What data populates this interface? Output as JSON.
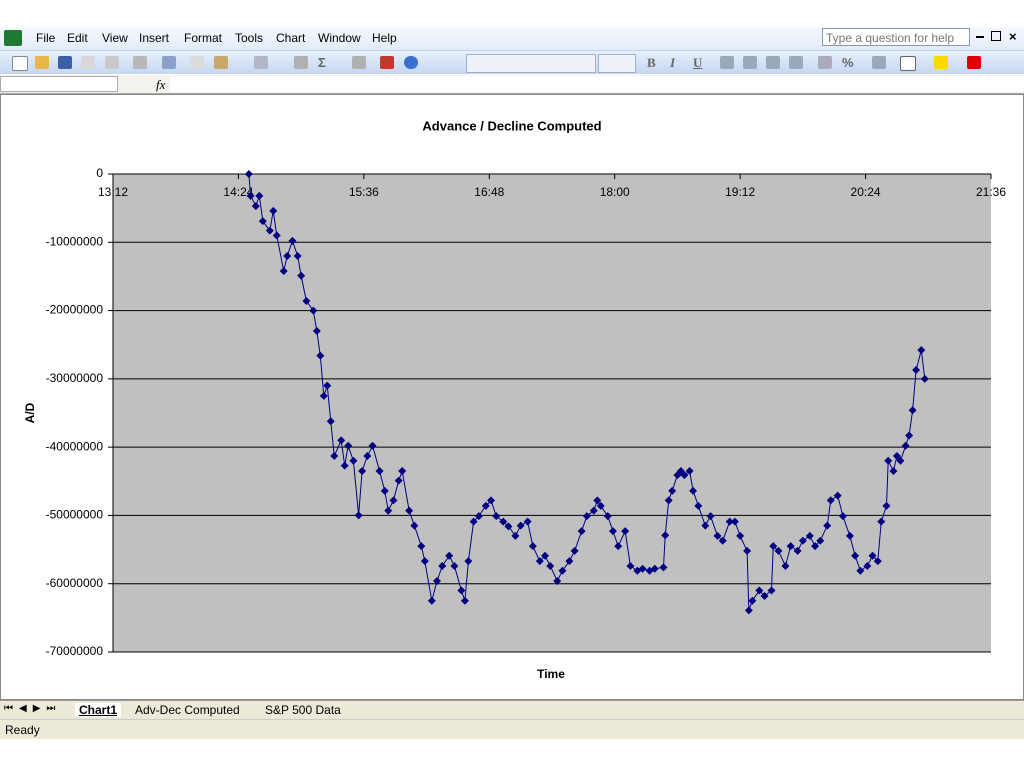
{
  "menu": [
    "File",
    "Edit",
    "View",
    "Insert",
    "Format",
    "Tools",
    "Chart",
    "Window",
    "Help"
  ],
  "help_box": "Type a question for help",
  "toolbar": {
    "sum": "Σ",
    "percent": "%",
    "bold": "B",
    "italic": "I",
    "underline": "U"
  },
  "formula_bar": {
    "fx": "fx"
  },
  "sheet_tabs": [
    "Chart1",
    "Adv-Dec Computed",
    "S&P 500 Data"
  ],
  "status": "Ready",
  "chart_data": {
    "type": "line",
    "title": "Advance / Decline Computed",
    "x_label": "Time",
    "y_label": "A/D",
    "color": "#000080",
    "plot_background": "#c0c0c0",
    "grid": true,
    "xlim": [
      792,
      1296
    ],
    "xticks": [
      {
        "value": 792,
        "label": "13:12"
      },
      {
        "value": 864,
        "label": "14:24"
      },
      {
        "value": 936,
        "label": "15:36"
      },
      {
        "value": 1008,
        "label": "16:48"
      },
      {
        "value": 1080,
        "label": "18:00"
      },
      {
        "value": 1152,
        "label": "19:12"
      },
      {
        "value": 1224,
        "label": "20:24"
      },
      {
        "value": 1296,
        "label": "21:36"
      }
    ],
    "ylim": [
      -70000000,
      0
    ],
    "yticks": [
      0,
      -10000000,
      -20000000,
      -30000000,
      -40000000,
      -50000000,
      -60000000,
      -70000000
    ],
    "x": [
      870,
      871,
      874,
      876,
      878,
      882,
      884,
      886,
      890,
      892,
      895,
      898,
      900,
      903,
      907,
      909,
      911,
      913,
      915,
      917,
      919,
      923,
      925,
      927,
      930,
      933,
      935,
      938,
      941,
      945,
      948,
      950,
      953,
      956,
      958,
      962,
      965,
      969,
      971,
      975,
      978,
      981,
      985,
      988,
      992,
      994,
      996,
      999,
      1002,
      1006,
      1009,
      1012,
      1016,
      1019,
      1023,
      1026,
      1030,
      1033,
      1037,
      1040,
      1043,
      1047,
      1050,
      1054,
      1057,
      1061,
      1064,
      1068,
      1070,
      1072,
      1076,
      1079,
      1082,
      1086,
      1089,
      1093,
      1096,
      1100,
      1103,
      1108,
      1109,
      1111,
      1113,
      1116,
      1118,
      1120,
      1123,
      1125,
      1128,
      1132,
      1135,
      1139,
      1142,
      1146,
      1149,
      1152,
      1156,
      1157,
      1159,
      1163,
      1166,
      1170,
      1171,
      1174,
      1178,
      1181,
      1185,
      1188,
      1192,
      1195,
      1198,
      1202,
      1204,
      1208,
      1211,
      1215,
      1218,
      1221,
      1225,
      1228,
      1231,
      1233,
      1236,
      1237,
      1240,
      1242,
      1244,
      1247,
      1249,
      1251,
      1253,
      1256,
      1258
    ],
    "values": [
      0,
      -3200000,
      -4700000,
      -3200000,
      -6900000,
      -8300000,
      -5400000,
      -9000000,
      -14200000,
      -12000000,
      -9800000,
      -12000000,
      -14900000,
      -18600000,
      -20000000,
      -23000000,
      -26600000,
      -32500000,
      -31000000,
      -36200000,
      -41300000,
      -39000000,
      -42700000,
      -39800000,
      -42000000,
      -50000000,
      -43500000,
      -41300000,
      -39800000,
      -43500000,
      -46400000,
      -49300000,
      -47800000,
      -44900000,
      -43500000,
      -49300000,
      -51500000,
      -54500000,
      -56700000,
      -62500000,
      -59600000,
      -57400000,
      -55900000,
      -57400000,
      -61000000,
      -62500000,
      -56700000,
      -50900000,
      -50100000,
      -48600000,
      -47800000,
      -50100000,
      -50900000,
      -51600000,
      -53000000,
      -51500000,
      -50900000,
      -54500000,
      -56700000,
      -55900000,
      -57400000,
      -59600000,
      -58100000,
      -56700000,
      -55200000,
      -52300000,
      -50100000,
      -49300000,
      -47800000,
      -48600000,
      -50100000,
      -52300000,
      -54500000,
      -52300000,
      -57400000,
      -58100000,
      -57800000,
      -58100000,
      -57800000,
      -57600000,
      -52900000,
      -47800000,
      -46400000,
      -44100000,
      -43500000,
      -44100000,
      -43500000,
      -46400000,
      -48600000,
      -51500000,
      -50100000,
      -53000000,
      -53700000,
      -50900000,
      -50900000,
      -53000000,
      -55200000,
      -63900000,
      -62500000,
      -61000000,
      -61800000,
      -61000000,
      -54500000,
      -55200000,
      -57400000,
      -54500000,
      -55200000,
      -53700000,
      -53000000,
      -54500000,
      -53700000,
      -51500000,
      -47800000,
      -47100000,
      -50100000,
      -53000000,
      -55900000,
      -58100000,
      -57400000,
      -55900000,
      -56700000,
      -50900000,
      -48600000,
      -42000000,
      -43500000,
      -41300000,
      -42000000,
      -39800000,
      -38300000,
      -34600000,
      -28700000,
      -25800000,
      -30000000
    ]
  }
}
